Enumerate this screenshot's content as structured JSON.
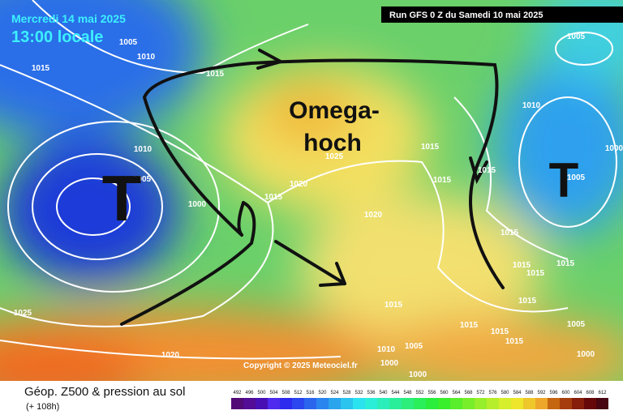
{
  "header": {
    "date": "Mercredi 14 mai 2025",
    "time": "13:00 locale",
    "run": "Run GFS 0 Z du Samedi 10 mai 2025"
  },
  "annotations": {
    "omega": [
      "Omega-",
      "hoch"
    ],
    "lows": [
      "T",
      "T"
    ]
  },
  "isobar_labels": [
    1005,
    1010,
    1015,
    1015,
    1010,
    1005,
    1000,
    1015,
    1020,
    1025,
    1015,
    1015,
    1015,
    1020,
    1015,
    1015,
    1015,
    1015,
    1015,
    1015,
    1015,
    1015,
    1015,
    1005,
    1000,
    1010,
    1005,
    1000,
    1000,
    1025,
    1020,
    1005,
    1010,
    1005,
    1000
  ],
  "copyright": "Copyright © 2025 Meteociel.fr",
  "footer": {
    "title": "Géop. Z500 & pression au sol",
    "subtitle": "(+ 108h)"
  },
  "colorbar": {
    "labels": [
      492,
      496,
      500,
      504,
      508,
      512,
      516,
      520,
      524,
      528,
      532,
      536,
      540,
      544,
      548,
      552,
      556,
      560,
      564,
      568,
      572,
      576,
      580,
      584,
      588,
      592,
      596,
      600,
      604,
      608,
      612
    ]
  }
}
